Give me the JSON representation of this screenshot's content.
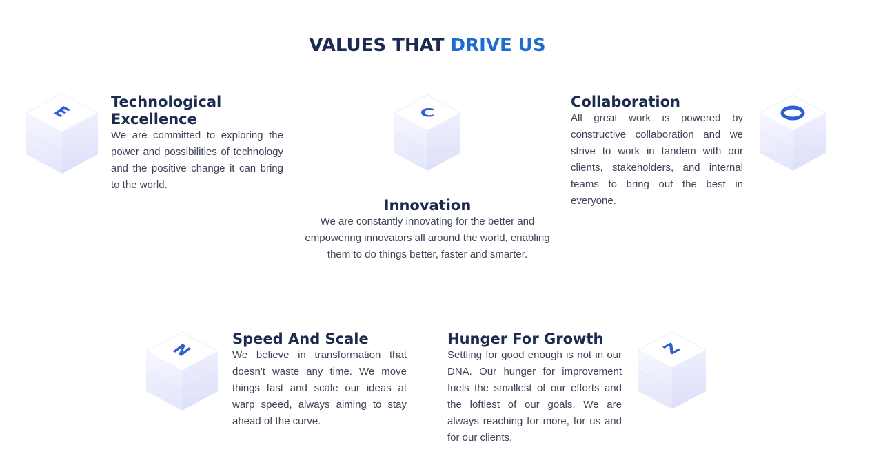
{
  "section": {
    "title_part1": "VALUES THAT",
    "title_part2": "DRIVE US",
    "accent_color": "#1f6ccf",
    "title_color": "#1b2a4e"
  },
  "values": [
    {
      "letter": "E",
      "icon": "cube-letter-e-icon",
      "title_line1": "Technological",
      "title_line2": "Excellence",
      "text": "We are committed to exploring the power and possibilities of technology and the positive change it can bring to the world."
    },
    {
      "letter": "C",
      "icon": "cube-letter-c-icon",
      "title": "Innovation",
      "text": "We are constantly innovating for the better and empowering innovators all around the world, enabling them to do things better, faster and smarter."
    },
    {
      "letter": "O",
      "icon": "cube-letter-o-icon",
      "title": "Collaboration",
      "text": "All great work is powered by constructive collaboration and we strive to work in tandem with our clients, stakeholders, and internal teams to bring out the best in everyone."
    },
    {
      "letter": "N",
      "icon": "cube-letter-n-icon",
      "title": "Speed And Scale",
      "text": "We believe in transformation that doesn't waste any time. We move things fast and scale our ideas at warp speed, always aiming to stay ahead of the curve."
    },
    {
      "letter": "Z",
      "icon": "cube-letter-z-icon",
      "title": "Hunger For Growth",
      "text": "Settling for good enough is not in our DNA. Our hunger for improvement fuels the smallest of our efforts and the loftiest of our goals. We are always reaching for more, for us and for our clients."
    }
  ]
}
